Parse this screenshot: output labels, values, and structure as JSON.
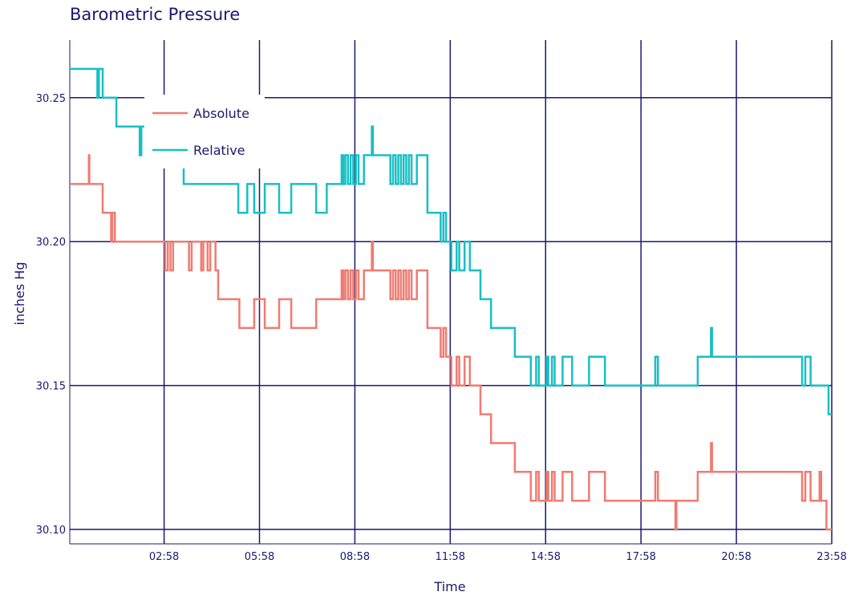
{
  "chart_data": {
    "type": "line",
    "title": "Barometric Pressure",
    "xlabel": "Time",
    "ylabel": "inches Hg",
    "xlim": [
      "00:00",
      "23:58"
    ],
    "ylim": [
      30.095,
      30.27
    ],
    "grid": true,
    "legend": "top-left",
    "x_ticks": [
      "02:58",
      "05:58",
      "08:58",
      "11:58",
      "14:58",
      "17:58",
      "20:58",
      "23:58"
    ],
    "y_ticks": [
      "30.10",
      "30.15",
      "30.20",
      "30.25"
    ],
    "colors": {
      "grid": "#191970",
      "text": "#191970"
    },
    "series": [
      {
        "name": "Absolute",
        "color": "#F07B72",
        "points": [
          [
            "00:00",
            30.22
          ],
          [
            "00:35",
            30.22
          ],
          [
            "00:36",
            30.23
          ],
          [
            "00:37",
            30.22
          ],
          [
            "01:00",
            30.22
          ],
          [
            "01:02",
            30.21
          ],
          [
            "01:15",
            30.21
          ],
          [
            "01:18",
            30.2
          ],
          [
            "01:20",
            30.21
          ],
          [
            "01:25",
            30.2
          ],
          [
            "02:55",
            30.2
          ],
          [
            "03:00",
            30.19
          ],
          [
            "03:05",
            30.2
          ],
          [
            "03:10",
            30.19
          ],
          [
            "03:15",
            30.2
          ],
          [
            "03:40",
            30.2
          ],
          [
            "03:45",
            30.19
          ],
          [
            "03:50",
            30.2
          ],
          [
            "04:05",
            30.2
          ],
          [
            "04:08",
            30.19
          ],
          [
            "04:12",
            30.2
          ],
          [
            "04:20",
            30.19
          ],
          [
            "04:25",
            30.2
          ],
          [
            "04:35",
            30.19
          ],
          [
            "04:40",
            30.18
          ],
          [
            "05:15",
            30.18
          ],
          [
            "05:20",
            30.17
          ],
          [
            "05:45",
            30.17
          ],
          [
            "05:48",
            30.18
          ],
          [
            "06:05",
            30.18
          ],
          [
            "06:08",
            30.17
          ],
          [
            "06:30",
            30.17
          ],
          [
            "06:35",
            30.18
          ],
          [
            "06:55",
            30.18
          ],
          [
            "06:58",
            30.17
          ],
          [
            "07:40",
            30.17
          ],
          [
            "07:45",
            30.18
          ],
          [
            "08:30",
            30.18
          ],
          [
            "08:33",
            30.19
          ],
          [
            "08:36",
            30.18
          ],
          [
            "08:40",
            30.19
          ],
          [
            "08:45",
            30.18
          ],
          [
            "08:50",
            30.19
          ],
          [
            "08:55",
            30.18
          ],
          [
            "09:00",
            30.19
          ],
          [
            "09:05",
            30.18
          ],
          [
            "09:10",
            30.18
          ],
          [
            "09:15",
            30.19
          ],
          [
            "09:25",
            30.19
          ],
          [
            "09:30",
            30.2
          ],
          [
            "09:32",
            30.19
          ],
          [
            "10:00",
            30.19
          ],
          [
            "10:05",
            30.18
          ],
          [
            "10:10",
            30.19
          ],
          [
            "10:15",
            30.18
          ],
          [
            "10:20",
            30.19
          ],
          [
            "10:25",
            30.18
          ],
          [
            "10:30",
            30.19
          ],
          [
            "10:35",
            30.18
          ],
          [
            "10:40",
            30.19
          ],
          [
            "10:45",
            30.18
          ],
          [
            "10:55",
            30.19
          ],
          [
            "11:10",
            30.19
          ],
          [
            "11:15",
            30.17
          ],
          [
            "11:35",
            30.17
          ],
          [
            "11:40",
            30.16
          ],
          [
            "11:45",
            30.17
          ],
          [
            "11:50",
            30.16
          ],
          [
            "12:00",
            30.15
          ],
          [
            "12:10",
            30.16
          ],
          [
            "12:15",
            30.15
          ],
          [
            "12:25",
            30.16
          ],
          [
            "12:35",
            30.15
          ],
          [
            "12:50",
            30.15
          ],
          [
            "12:55",
            30.14
          ],
          [
            "13:15",
            30.13
          ],
          [
            "13:55",
            30.13
          ],
          [
            "14:00",
            30.12
          ],
          [
            "14:25",
            30.12
          ],
          [
            "14:30",
            30.11
          ],
          [
            "14:40",
            30.12
          ],
          [
            "14:45",
            30.11
          ],
          [
            "15:00",
            30.12
          ],
          [
            "15:03",
            30.11
          ],
          [
            "15:10",
            30.12
          ],
          [
            "15:15",
            30.11
          ],
          [
            "15:25",
            30.11
          ],
          [
            "15:30",
            30.12
          ],
          [
            "15:45",
            30.12
          ],
          [
            "15:48",
            30.11
          ],
          [
            "16:15",
            30.11
          ],
          [
            "16:20",
            30.12
          ],
          [
            "16:45",
            30.12
          ],
          [
            "16:50",
            30.11
          ],
          [
            "18:20",
            30.11
          ],
          [
            "18:25",
            30.12
          ],
          [
            "18:30",
            30.11
          ],
          [
            "19:00",
            30.11
          ],
          [
            "19:03",
            30.1
          ],
          [
            "19:05",
            30.11
          ],
          [
            "19:40",
            30.11
          ],
          [
            "19:45",
            30.12
          ],
          [
            "20:05",
            30.12
          ],
          [
            "20:10",
            30.13
          ],
          [
            "20:12",
            30.12
          ],
          [
            "23:00",
            30.12
          ],
          [
            "23:02",
            30.11
          ],
          [
            "23:08",
            30.12
          ],
          [
            "23:15",
            30.12
          ],
          [
            "23:18",
            30.11
          ],
          [
            "23:30",
            30.11
          ],
          [
            "23:35",
            30.12
          ],
          [
            "23:38",
            30.11
          ],
          [
            "23:45",
            30.11
          ],
          [
            "23:48",
            30.1
          ],
          [
            "23:58",
            30.1
          ]
        ]
      },
      {
        "name": "Relative",
        "color": "#18BFC4",
        "points": [
          [
            "00:00",
            30.26
          ],
          [
            "00:50",
            30.26
          ],
          [
            "00:52",
            30.25
          ],
          [
            "00:55",
            30.26
          ],
          [
            "01:00",
            30.26
          ],
          [
            "01:02",
            30.25
          ],
          [
            "01:25",
            30.25
          ],
          [
            "01:28",
            30.24
          ],
          [
            "02:10",
            30.24
          ],
          [
            "02:12",
            30.23
          ],
          [
            "02:15",
            30.24
          ],
          [
            "03:30",
            30.24
          ],
          [
            "03:35",
            30.22
          ],
          [
            "05:15",
            30.22
          ],
          [
            "05:18",
            30.21
          ],
          [
            "05:30",
            30.21
          ],
          [
            "05:35",
            30.22
          ],
          [
            "05:45",
            30.22
          ],
          [
            "05:48",
            30.21
          ],
          [
            "06:05",
            30.21
          ],
          [
            "06:08",
            30.22
          ],
          [
            "06:30",
            30.22
          ],
          [
            "06:35",
            30.21
          ],
          [
            "06:55",
            30.21
          ],
          [
            "06:58",
            30.22
          ],
          [
            "07:40",
            30.22
          ],
          [
            "07:45",
            30.21
          ],
          [
            "08:00",
            30.21
          ],
          [
            "08:05",
            30.22
          ],
          [
            "08:30",
            30.22
          ],
          [
            "08:33",
            30.23
          ],
          [
            "08:36",
            30.22
          ],
          [
            "08:40",
            30.23
          ],
          [
            "08:45",
            30.22
          ],
          [
            "08:50",
            30.23
          ],
          [
            "08:55",
            30.22
          ],
          [
            "09:00",
            30.23
          ],
          [
            "09:05",
            30.22
          ],
          [
            "09:10",
            30.22
          ],
          [
            "09:15",
            30.23
          ],
          [
            "09:25",
            30.23
          ],
          [
            "09:30",
            30.24
          ],
          [
            "09:32",
            30.23
          ],
          [
            "10:00",
            30.23
          ],
          [
            "10:05",
            30.22
          ],
          [
            "10:10",
            30.23
          ],
          [
            "10:15",
            30.22
          ],
          [
            "10:20",
            30.23
          ],
          [
            "10:25",
            30.22
          ],
          [
            "10:30",
            30.23
          ],
          [
            "10:35",
            30.22
          ],
          [
            "10:40",
            30.23
          ],
          [
            "10:45",
            30.22
          ],
          [
            "10:55",
            30.23
          ],
          [
            "11:10",
            30.23
          ],
          [
            "11:15",
            30.21
          ],
          [
            "11:35",
            30.21
          ],
          [
            "11:40",
            30.2
          ],
          [
            "11:45",
            30.21
          ],
          [
            "11:50",
            30.2
          ],
          [
            "12:00",
            30.19
          ],
          [
            "12:10",
            30.2
          ],
          [
            "12:15",
            30.19
          ],
          [
            "12:25",
            30.2
          ],
          [
            "12:35",
            30.19
          ],
          [
            "12:50",
            30.19
          ],
          [
            "12:55",
            30.18
          ],
          [
            "13:15",
            30.17
          ],
          [
            "13:55",
            30.17
          ],
          [
            "14:00",
            30.16
          ],
          [
            "14:25",
            30.16
          ],
          [
            "14:30",
            30.15
          ],
          [
            "14:40",
            30.16
          ],
          [
            "14:45",
            30.15
          ],
          [
            "15:00",
            30.16
          ],
          [
            "15:03",
            30.15
          ],
          [
            "15:10",
            30.16
          ],
          [
            "15:15",
            30.15
          ],
          [
            "15:25",
            30.15
          ],
          [
            "15:30",
            30.16
          ],
          [
            "15:45",
            30.16
          ],
          [
            "15:48",
            30.15
          ],
          [
            "16:15",
            30.15
          ],
          [
            "16:20",
            30.16
          ],
          [
            "16:45",
            30.16
          ],
          [
            "16:50",
            30.15
          ],
          [
            "18:20",
            30.15
          ],
          [
            "18:25",
            30.16
          ],
          [
            "18:30",
            30.15
          ],
          [
            "19:40",
            30.15
          ],
          [
            "19:45",
            30.16
          ],
          [
            "20:05",
            30.16
          ],
          [
            "20:10",
            30.17
          ],
          [
            "20:12",
            30.16
          ],
          [
            "23:00",
            30.16
          ],
          [
            "23:02",
            30.15
          ],
          [
            "23:08",
            30.16
          ],
          [
            "23:15",
            30.16
          ],
          [
            "23:18",
            30.15
          ],
          [
            "23:50",
            30.15
          ],
          [
            "23:52",
            30.14
          ],
          [
            "23:58",
            30.14
          ]
        ]
      }
    ]
  }
}
